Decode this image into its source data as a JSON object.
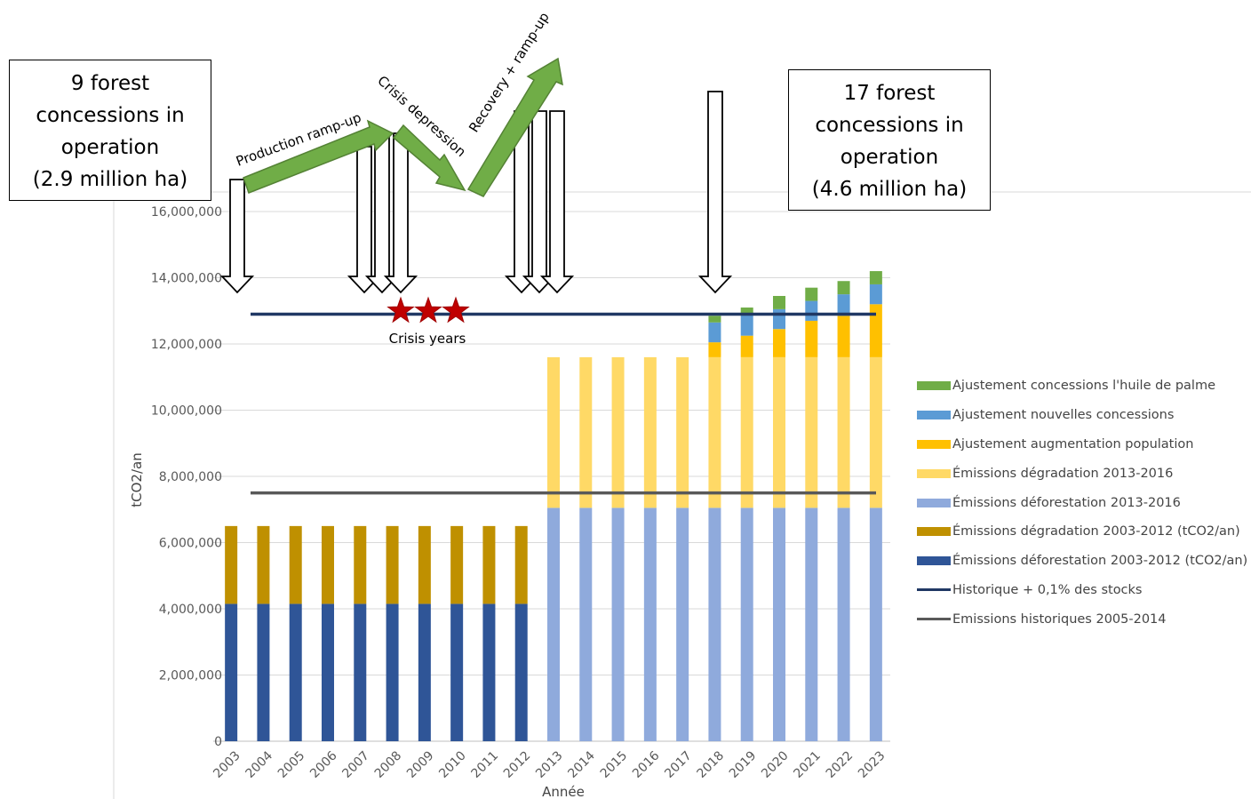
{
  "annotations": {
    "left_box": [
      "9 forest",
      "concessions in",
      "operation",
      "(2.9 million ha)"
    ],
    "right_box": [
      "17 forest",
      "concessions in",
      "operation",
      "(4.6 million ha)"
    ],
    "phases": [
      "Production ramp-up",
      "Crisis depression",
      "Recovery + ramp-up"
    ],
    "crisis_label": "Crisis years"
  },
  "chart_data": {
    "type": "bar",
    "stacked": true,
    "xlabel": "Année",
    "ylabel": "tCO2/an",
    "ylim": [
      0,
      16000000
    ],
    "yticks": [
      0,
      2000000,
      4000000,
      6000000,
      8000000,
      10000000,
      12000000,
      14000000,
      16000000
    ],
    "ytick_labels": [
      "0",
      "2,000,000",
      "4,000,000",
      "6,000,000",
      "8,000,000",
      "10,000,000",
      "12,000,000",
      "14,000,000",
      "16,000,000"
    ],
    "grid": true,
    "legend_position": "right",
    "categories": [
      "2003",
      "2004",
      "2005",
      "2006",
      "2007",
      "2008",
      "2009",
      "2010",
      "2011",
      "2012",
      "2013",
      "2014",
      "2015",
      "2016",
      "2017",
      "2018",
      "2019",
      "2020",
      "2021",
      "2022",
      "2023"
    ],
    "series": [
      {
        "name": "Émissions  déforestation 2003-2012 (tCO2/an)",
        "color": "#2f5597",
        "values": [
          4150000,
          4150000,
          4150000,
          4150000,
          4150000,
          4150000,
          4150000,
          4150000,
          4150000,
          4150000,
          0,
          0,
          0,
          0,
          0,
          0,
          0,
          0,
          0,
          0,
          0
        ]
      },
      {
        "name": "Émissions dégradation 2003-2012 (tCO2/an)",
        "color": "#bf9000",
        "values": [
          2350000,
          2350000,
          2350000,
          2350000,
          2350000,
          2350000,
          2350000,
          2350000,
          2350000,
          2350000,
          0,
          0,
          0,
          0,
          0,
          0,
          0,
          0,
          0,
          0,
          0
        ]
      },
      {
        "name": "Émissions déforestation 2013-2016",
        "color": "#8faadc",
        "values": [
          0,
          0,
          0,
          0,
          0,
          0,
          0,
          0,
          0,
          0,
          7050000,
          7050000,
          7050000,
          7050000,
          7050000,
          7050000,
          7050000,
          7050000,
          7050000,
          7050000,
          7050000
        ]
      },
      {
        "name": "Émissions dégradation 2013-2016",
        "color": "#ffd966",
        "values": [
          0,
          0,
          0,
          0,
          0,
          0,
          0,
          0,
          0,
          0,
          4550000,
          4550000,
          4550000,
          4550000,
          4550000,
          4550000,
          4550000,
          4550000,
          4550000,
          4550000,
          4550000
        ]
      },
      {
        "name": "Ajustement augmentation population",
        "color": "#ffc000",
        "values": [
          0,
          0,
          0,
          0,
          0,
          0,
          0,
          0,
          0,
          0,
          0,
          0,
          0,
          0,
          0,
          450000,
          650000,
          850000,
          1100000,
          1250000,
          1600000
        ]
      },
      {
        "name": "Ajustement nouvelles concessions",
        "color": "#5b9bd5",
        "values": [
          0,
          0,
          0,
          0,
          0,
          0,
          0,
          0,
          0,
          0,
          0,
          0,
          0,
          0,
          0,
          600000,
          650000,
          600000,
          600000,
          650000,
          600000
        ]
      },
      {
        "name": "Ajustement concessions l'huile de palme",
        "color": "#70ad47",
        "values": [
          0,
          0,
          0,
          0,
          0,
          0,
          0,
          0,
          0,
          0,
          0,
          0,
          0,
          0,
          0,
          200000,
          200000,
          400000,
          400000,
          400000,
          400000
        ]
      }
    ],
    "lines": [
      {
        "name": "Historique + 0,1%  des stocks",
        "color": "#203864",
        "value": 12900000
      },
      {
        "name": "Emissions historiques 2005-2014",
        "color": "#595959",
        "value": 7500000
      }
    ],
    "legend_order": [
      "Ajustement concessions l'huile de palme",
      "Ajustement nouvelles concessions",
      "Ajustement augmentation population",
      "Émissions dégradation 2013-2016",
      "Émissions déforestation 2013-2016",
      "Émissions dégradation 2003-2012 (tCO2/an)",
      "Émissions  déforestation 2003-2012 (tCO2/an)",
      "Historique + 0,1%  des stocks",
      "Emissions historiques 2005-2014"
    ]
  }
}
